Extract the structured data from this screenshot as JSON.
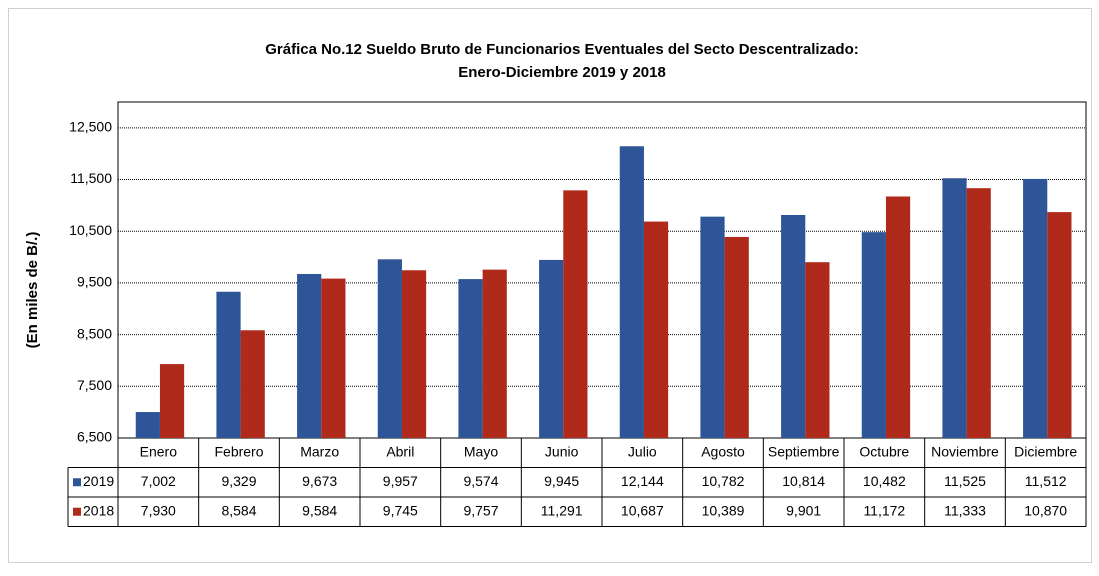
{
  "chart_data": {
    "type": "bar",
    "title": "Gráfica No.12 Sueldo Bruto de Funcionarios Eventuales del Secto  Descentralizado:",
    "subtitle": "Enero-Diciembre 2019 y 2018",
    "y_label": "(En miles de B/.)",
    "categories": [
      "Enero",
      "Febrero",
      "Marzo",
      "Abril",
      "Mayo",
      "Junio",
      "Julio",
      "Agosto",
      "Septiembre",
      "Octubre",
      "Noviembre",
      "Diciembre"
    ],
    "series": [
      {
        "name": "2019",
        "color": "#2e5597",
        "values": [
          7002,
          9329,
          9673,
          9957,
          9574,
          9945,
          12144,
          10782,
          10814,
          10482,
          11525,
          11512
        ],
        "value_labels": [
          "7,002",
          "9,329",
          "9,673",
          "9,957",
          "9,574",
          "9,945",
          "12,144",
          "10,782",
          "10,814",
          "10,482",
          "11,525",
          "11,512"
        ]
      },
      {
        "name": "2018",
        "color": "#b02a1c",
        "values": [
          7930,
          8584,
          9584,
          9745,
          9757,
          11291,
          10687,
          10389,
          9901,
          11172,
          11333,
          10870
        ],
        "value_labels": [
          "7,930",
          "8,584",
          "9,584",
          "9,745",
          "9,757",
          "11,291",
          "10,687",
          "10,389",
          "9,901",
          "11,172",
          "11,333",
          "10,870"
        ]
      }
    ],
    "ylim": [
      6500,
      13000
    ],
    "yticks": [
      {
        "value": 6500,
        "label": "6,500"
      },
      {
        "value": 7500,
        "label": "7,500"
      },
      {
        "value": 8500,
        "label": "8,500"
      },
      {
        "value": 9500,
        "label": "9,500"
      },
      {
        "value": 10500,
        "label": "10,500"
      },
      {
        "value": 11500,
        "label": "11,500"
      },
      {
        "value": 12500,
        "label": "12,500"
      }
    ],
    "grid": true
  }
}
